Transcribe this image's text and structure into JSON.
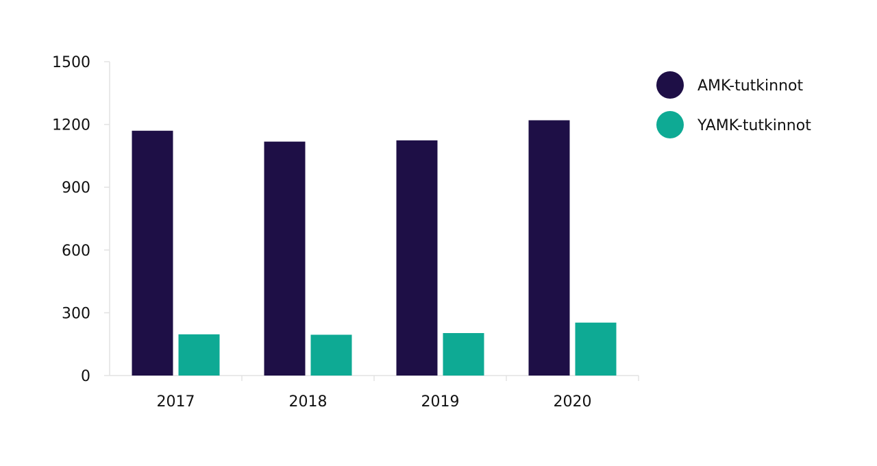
{
  "chart_data": {
    "type": "bar",
    "categories": [
      "2017",
      "2018",
      "2019",
      "2020"
    ],
    "series": [
      {
        "name": "AMK-tutkinnot",
        "color": "#1e0f46",
        "values": [
          1170,
          1118,
          1124,
          1220
        ]
      },
      {
        "name": "YAMK-tutkinnot",
        "color": "#0eaa94",
        "values": [
          197,
          195,
          203,
          253
        ]
      }
    ],
    "ylim": [
      0,
      1500
    ],
    "yticks": [
      "0",
      "300",
      "600",
      "900",
      "1200",
      "1500"
    ],
    "grid": false,
    "legend_position": "right"
  }
}
